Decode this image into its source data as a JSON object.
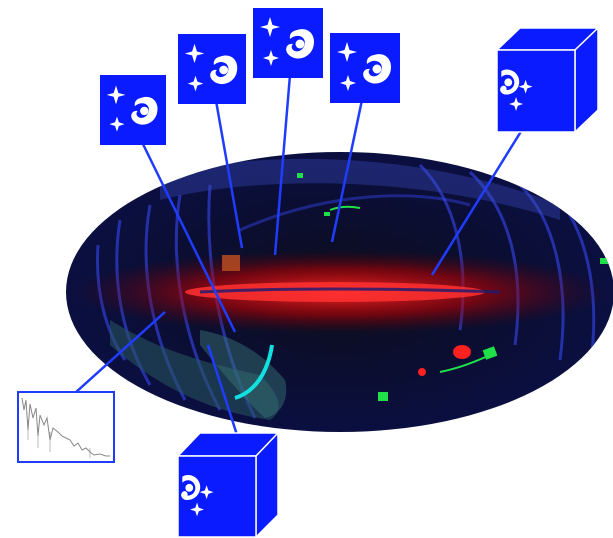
{
  "figure": {
    "background": "#ffffff",
    "sky_map": {
      "projection": "all-sky ellipse",
      "background_color": "#050510",
      "galactic_plane_color": "#ff1a1a",
      "survey_track_color": "#4a5cff",
      "patch_color": "#20e04a",
      "stream_color": "#10d8d8"
    },
    "connector_color": "#1f3cff",
    "icons": {
      "tile_color": "#0a1cff",
      "glyph_color": "#ffffff",
      "flat_tiles": [
        {
          "icon": "sparkle-galaxy-icon"
        },
        {
          "icon": "sparkle-galaxy-icon"
        },
        {
          "icon": "sparkle-galaxy-icon"
        },
        {
          "icon": "sparkle-galaxy-icon"
        }
      ],
      "cube_tiles": [
        {
          "icon": "galaxy-cube-icon"
        },
        {
          "icon": "galaxy-cube-icon"
        }
      ],
      "spectrum_panel": {
        "icon": "spectrum-plot-icon",
        "line_color": "#888888",
        "border_color": "#1f3cff"
      }
    }
  }
}
